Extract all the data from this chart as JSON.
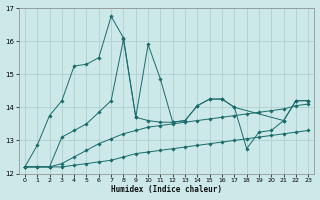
{
  "title": "",
  "xlabel": "Humidex (Indice chaleur)",
  "xlim": [
    -0.5,
    23.5
  ],
  "ylim": [
    12,
    17
  ],
  "yticks": [
    12,
    13,
    14,
    15,
    16,
    17
  ],
  "xticks": [
    0,
    1,
    2,
    3,
    4,
    5,
    6,
    7,
    8,
    9,
    10,
    11,
    12,
    13,
    14,
    15,
    16,
    17,
    18,
    19,
    20,
    21,
    22,
    23
  ],
  "bg_color": "#cce8e8",
  "grid_color": "#aacccc",
  "line_color": "#1a6b6b",
  "series": [
    {
      "x": [
        0,
        1,
        2,
        3,
        4,
        5,
        6,
        7,
        8,
        9,
        10,
        11,
        12,
        13,
        14,
        15,
        16,
        17,
        18,
        19,
        20,
        21,
        22,
        23
      ],
      "y": [
        12.2,
        12.2,
        12.2,
        12.2,
        12.25,
        12.3,
        12.35,
        12.4,
        12.5,
        12.6,
        12.65,
        12.7,
        12.75,
        12.8,
        12.85,
        12.9,
        12.95,
        13.0,
        13.05,
        13.1,
        13.15,
        13.2,
        13.25,
        13.3
      ]
    },
    {
      "x": [
        0,
        1,
        2,
        3,
        4,
        5,
        6,
        7,
        8,
        9,
        10,
        11,
        12,
        13,
        14,
        15,
        16,
        17,
        18,
        19,
        20,
        21,
        22,
        23
      ],
      "y": [
        12.2,
        12.2,
        12.2,
        12.3,
        12.5,
        12.7,
        12.9,
        13.05,
        13.2,
        13.3,
        13.4,
        13.45,
        13.5,
        13.55,
        13.6,
        13.65,
        13.7,
        13.75,
        13.8,
        13.85,
        13.9,
        13.95,
        14.05,
        14.1
      ]
    },
    {
      "x": [
        0,
        2,
        3,
        4,
        5,
        6,
        7,
        8,
        9,
        10,
        11,
        12,
        13,
        14,
        15,
        16,
        17,
        18,
        19,
        20,
        21,
        22,
        23
      ],
      "y": [
        12.2,
        12.2,
        13.1,
        13.3,
        13.5,
        13.85,
        14.2,
        16.05,
        13.7,
        13.6,
        13.55,
        13.55,
        13.6,
        14.05,
        14.25,
        14.25,
        14.0,
        12.75,
        13.25,
        13.3,
        13.6,
        14.2,
        14.2
      ]
    },
    {
      "x": [
        0,
        1,
        2,
        3,
        4,
        5,
        6,
        7,
        8,
        9,
        10,
        11,
        12,
        13,
        14,
        15,
        16,
        17,
        21,
        22,
        23
      ],
      "y": [
        12.2,
        12.85,
        13.75,
        14.2,
        15.25,
        15.3,
        15.5,
        16.75,
        16.1,
        13.7,
        15.9,
        14.85,
        13.55,
        13.6,
        14.05,
        14.25,
        14.25,
        14.0,
        13.6,
        14.2,
        14.2
      ]
    }
  ]
}
